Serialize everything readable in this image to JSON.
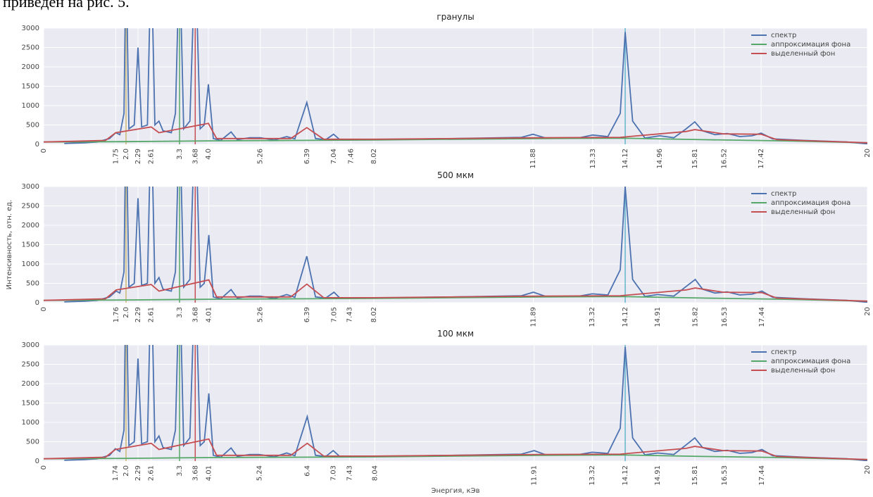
{
  "text": {
    "caption": "приведен на рис. 5."
  },
  "chart_data": [
    {
      "type": "line",
      "title": "гранулы",
      "xlim": [
        0,
        20
      ],
      "ylim": [
        0,
        3000
      ],
      "yticks": [
        0,
        500,
        1000,
        1500,
        2000,
        2500,
        3000
      ],
      "grid": true,
      "legend": "upper right",
      "xticks": [
        0,
        1.75,
        {
          "value": 2,
          "label": "2.0"
        },
        2.29,
        2.61,
        3.3,
        3.68,
        {
          "value": 4,
          "label": "4.0"
        },
        5.26,
        6.39,
        7.04,
        7.46,
        8.02,
        11.88,
        13.33,
        14.12,
        14.96,
        15.81,
        16.52,
        17.42,
        20
      ],
      "markers": [
        {
          "x": 2,
          "color": "#ccb974"
        },
        {
          "x": 3.3,
          "color": "#55a868"
        },
        {
          "x": 3.68,
          "color": "#c44e52"
        },
        {
          "x": 14.12,
          "color": "#64b5cd"
        }
      ],
      "series": [
        {
          "name": "спектр",
          "color": "#4c72b0",
          "x": [
            0.5,
            1.0,
            1.3,
            1.6,
            1.75,
            1.85,
            1.95,
            2.0,
            2.07,
            2.2,
            2.29,
            2.38,
            2.52,
            2.61,
            2.7,
            2.8,
            2.9,
            3.1,
            3.2,
            3.3,
            3.4,
            3.55,
            3.68,
            3.8,
            3.9,
            4.0,
            4.12,
            4.3,
            4.55,
            4.7,
            5.0,
            5.26,
            5.6,
            5.9,
            6.1,
            6.39,
            6.6,
            6.85,
            7.04,
            7.2,
            8.0,
            10.0,
            11.6,
            11.88,
            12.2,
            13.0,
            13.33,
            13.7,
            14.0,
            14.12,
            14.3,
            14.6,
            14.96,
            15.3,
            15.6,
            15.81,
            16.0,
            16.3,
            16.6,
            16.9,
            17.2,
            17.42,
            17.7,
            18.5,
            19.5,
            20
          ],
          "values": [
            20,
            40,
            60,
            150,
            300,
            250,
            800,
            5000,
            400,
            500,
            2500,
            450,
            500,
            5000,
            500,
            600,
            350,
            300,
            800,
            5000,
            400,
            600,
            5000,
            400,
            500,
            1550,
            150,
            100,
            320,
            120,
            170,
            170,
            110,
            200,
            140,
            1080,
            150,
            120,
            260,
            110,
            120,
            150,
            180,
            260,
            160,
            170,
            240,
            200,
            800,
            2900,
            600,
            160,
            220,
            170,
            400,
            580,
            350,
            250,
            280,
            200,
            220,
            290,
            140,
            100,
            60,
            10
          ]
        },
        {
          "name": "аппроксимация фона",
          "color": "#55a868",
          "x": [
            0,
            2,
            4,
            6,
            8,
            10,
            12,
            14,
            16,
            18,
            20
          ],
          "values": [
            60,
            70,
            90,
            100,
            110,
            130,
            150,
            160,
            120,
            90,
            40
          ]
        },
        {
          "name": "выделенный фон",
          "color": "#c44e52",
          "x": [
            0,
            1.5,
            1.75,
            2.61,
            2.8,
            4.0,
            4.2,
            6.0,
            6.39,
            6.8,
            8.0,
            12.0,
            14.0,
            15.6,
            15.81,
            16.5,
            17.42,
            17.8,
            20
          ],
          "values": [
            60,
            100,
            300,
            450,
            300,
            540,
            150,
            150,
            430,
            130,
            130,
            170,
            180,
            330,
            380,
            270,
            260,
            120,
            40
          ]
        }
      ]
    },
    {
      "type": "line",
      "title": "500 мкм",
      "ylabel": "Интенсивность, отн. ед.",
      "xlim": [
        0,
        20
      ],
      "ylim": [
        0,
        3000
      ],
      "yticks": [
        0,
        500,
        1000,
        1500,
        2000,
        2500,
        3000
      ],
      "grid": true,
      "legend": "upper right",
      "xticks": [
        0,
        1.76,
        {
          "value": 2,
          "label": "2.0"
        },
        2.29,
        2.61,
        3.3,
        3.68,
        4.01,
        5.26,
        6.39,
        7.05,
        7.43,
        8.02,
        11.89,
        13.32,
        14.12,
        14.91,
        15.82,
        16.53,
        17.44,
        20
      ],
      "markers": [
        {
          "x": 2,
          "color": "#ccb974"
        },
        {
          "x": 3.3,
          "color": "#55a868"
        },
        {
          "x": 3.68,
          "color": "#c44e52"
        },
        {
          "x": 14.12,
          "color": "#64b5cd"
        }
      ],
      "series": [
        {
          "name": "спектр",
          "color": "#4c72b0",
          "x": [
            0.5,
            1.0,
            1.3,
            1.6,
            1.76,
            1.85,
            1.95,
            2.0,
            2.07,
            2.2,
            2.29,
            2.38,
            2.52,
            2.61,
            2.7,
            2.8,
            2.9,
            3.1,
            3.2,
            3.3,
            3.4,
            3.55,
            3.68,
            3.8,
            3.9,
            4.01,
            4.12,
            4.3,
            4.55,
            4.7,
            5.0,
            5.26,
            5.6,
            5.9,
            6.1,
            6.39,
            6.6,
            6.85,
            7.05,
            7.2,
            8.0,
            10.0,
            11.6,
            11.89,
            12.2,
            13.0,
            13.32,
            13.7,
            14.0,
            14.12,
            14.3,
            14.6,
            14.91,
            15.3,
            15.6,
            15.82,
            16.0,
            16.3,
            16.6,
            16.9,
            17.2,
            17.44,
            17.7,
            18.5,
            19.5,
            20
          ],
          "values": [
            20,
            40,
            60,
            150,
            300,
            250,
            800,
            5000,
            400,
            500,
            2700,
            450,
            500,
            5000,
            500,
            650,
            350,
            300,
            800,
            5000,
            400,
            600,
            5000,
            400,
            500,
            1750,
            150,
            100,
            340,
            120,
            170,
            170,
            110,
            210,
            140,
            1200,
            150,
            120,
            270,
            110,
            120,
            150,
            180,
            270,
            160,
            170,
            230,
            200,
            850,
            3000,
            600,
            160,
            210,
            170,
            420,
            600,
            350,
            250,
            280,
            200,
            220,
            300,
            140,
            100,
            60,
            10
          ]
        },
        {
          "name": "аппроксимация фона",
          "color": "#55a868",
          "x": [
            0,
            2,
            4,
            6,
            8,
            10,
            12,
            14,
            16,
            18,
            20
          ],
          "values": [
            60,
            70,
            90,
            100,
            110,
            130,
            150,
            160,
            120,
            90,
            40
          ]
        },
        {
          "name": "выделенный фон",
          "color": "#c44e52",
          "x": [
            0,
            1.5,
            1.76,
            2.61,
            2.8,
            4.01,
            4.2,
            6.0,
            6.39,
            6.8,
            8.0,
            12.0,
            14.0,
            15.6,
            15.82,
            16.5,
            17.44,
            17.8,
            20
          ],
          "values": [
            60,
            100,
            330,
            470,
            300,
            590,
            150,
            150,
            480,
            130,
            130,
            170,
            180,
            330,
            380,
            270,
            260,
            120,
            40
          ]
        }
      ]
    },
    {
      "type": "line",
      "title": "100 мкм",
      "xlabel": "Энергия, кЭв",
      "xlim": [
        0,
        20
      ],
      "ylim": [
        0,
        3000
      ],
      "yticks": [
        0,
        500,
        1000,
        1500,
        2000,
        2500,
        3000
      ],
      "grid": true,
      "legend": "upper right",
      "xticks": [
        0,
        1.74,
        {
          "value": 2,
          "label": "2.0"
        },
        2.29,
        2.61,
        3.3,
        3.68,
        4.01,
        5.24,
        6.4,
        7.03,
        7.43,
        8.04,
        11.91,
        13.32,
        14.12,
        14.91,
        15.81,
        16.53,
        17.44,
        20
      ],
      "markers": [
        {
          "x": 2,
          "color": "#ccb974"
        },
        {
          "x": 3.3,
          "color": "#55a868"
        },
        {
          "x": 3.68,
          "color": "#c44e52"
        },
        {
          "x": 14.12,
          "color": "#64b5cd"
        }
      ],
      "series": [
        {
          "name": "спектр",
          "color": "#4c72b0",
          "x": [
            0.5,
            1.0,
            1.3,
            1.6,
            1.74,
            1.85,
            1.95,
            2.0,
            2.07,
            2.2,
            2.29,
            2.38,
            2.52,
            2.61,
            2.7,
            2.8,
            2.9,
            3.1,
            3.2,
            3.3,
            3.4,
            3.55,
            3.68,
            3.8,
            3.9,
            4.01,
            4.12,
            4.3,
            4.55,
            4.7,
            5.0,
            5.24,
            5.6,
            5.9,
            6.1,
            6.4,
            6.6,
            6.85,
            7.03,
            7.2,
            8.0,
            10.0,
            11.6,
            11.91,
            12.2,
            13.0,
            13.32,
            13.7,
            14.0,
            14.12,
            14.3,
            14.6,
            14.91,
            15.3,
            15.6,
            15.81,
            16.0,
            16.3,
            16.6,
            16.9,
            17.2,
            17.44,
            17.7,
            18.5,
            19.5,
            20
          ],
          "values": [
            20,
            40,
            60,
            150,
            320,
            250,
            800,
            5000,
            400,
            500,
            2650,
            450,
            500,
            5000,
            500,
            650,
            350,
            300,
            800,
            5000,
            400,
            600,
            5000,
            400,
            500,
            1750,
            150,
            100,
            340,
            120,
            170,
            170,
            110,
            210,
            140,
            1150,
            150,
            120,
            270,
            110,
            120,
            150,
            180,
            270,
            160,
            170,
            230,
            200,
            850,
            2950,
            600,
            160,
            210,
            170,
            420,
            600,
            350,
            250,
            280,
            200,
            220,
            300,
            140,
            100,
            60,
            10
          ]
        },
        {
          "name": "аппроксимация фона",
          "color": "#55a868",
          "x": [
            0,
            2,
            4,
            6,
            8,
            10,
            12,
            14,
            16,
            18,
            20
          ],
          "values": [
            60,
            70,
            90,
            100,
            110,
            130,
            150,
            160,
            120,
            90,
            40
          ]
        },
        {
          "name": "выделенный фон",
          "color": "#c44e52",
          "x": [
            0,
            1.5,
            1.74,
            2.61,
            2.8,
            4.01,
            4.2,
            6.0,
            6.4,
            6.8,
            8.0,
            12.0,
            14.0,
            15.6,
            15.81,
            16.5,
            17.44,
            17.8,
            20
          ],
          "values": [
            60,
            100,
            300,
            460,
            300,
            570,
            150,
            150,
            460,
            130,
            130,
            170,
            180,
            330,
            380,
            270,
            260,
            120,
            40
          ]
        }
      ]
    }
  ]
}
